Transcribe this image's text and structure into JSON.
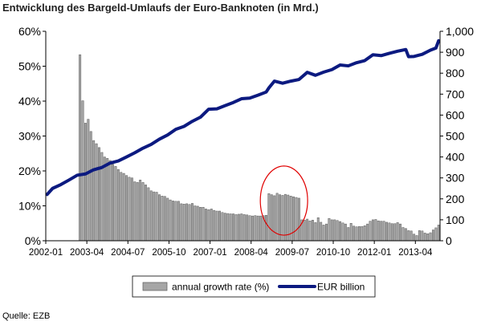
{
  "title": "Entwicklung des Bargeld-Umlaufs der Euro-Banknoten (in Mrd.)",
  "source": "Quelle: EZB",
  "colors": {
    "bar_fill": "#a6a6a6",
    "bar_stroke": "#5a5a5a",
    "line": "#0c1a80",
    "axis": "#000000",
    "highlight_ellipse": "#e00000"
  },
  "chart_data": {
    "type": "bar+line",
    "x_tick_labels": [
      "2002-01",
      "2003-04",
      "2004-07",
      "2005-10",
      "2007-01",
      "2008-04",
      "2009-07",
      "2010-10",
      "2012-01",
      "2013-04"
    ],
    "x_start": "2002-01",
    "x_end": "2013-12",
    "y_left": {
      "ticks": [
        "0%",
        "10%",
        "20%",
        "30%",
        "40%",
        "50%",
        "60%"
      ],
      "min": 0,
      "max": 60,
      "unit": "%"
    },
    "y_right": {
      "ticks": [
        "0",
        "100",
        "200",
        "300",
        "400",
        "500",
        "600",
        "700",
        "800",
        "900",
        "1,000"
      ],
      "min": 0,
      "max": 1000
    },
    "grid": false,
    "legend_position": "bottom",
    "annotation": "red ellipse highlighting 2008-11 to 2009-08",
    "series": [
      {
        "name": "annual growth rate (%)",
        "type": "bar",
        "axis": "left",
        "x": [
          "2003-01",
          "2003-02",
          "2003-03",
          "2003-04",
          "2003-05",
          "2003-06",
          "2003-07",
          "2003-08",
          "2003-09",
          "2003-10",
          "2003-11",
          "2003-12",
          "2004-01",
          "2004-02",
          "2004-03",
          "2004-04",
          "2004-05",
          "2004-06",
          "2004-07",
          "2004-08",
          "2004-09",
          "2004-10",
          "2004-11",
          "2004-12",
          "2005-01",
          "2005-02",
          "2005-03",
          "2005-04",
          "2005-05",
          "2005-06",
          "2005-07",
          "2005-08",
          "2005-09",
          "2005-10",
          "2005-11",
          "2005-12",
          "2006-01",
          "2006-02",
          "2006-03",
          "2006-04",
          "2006-05",
          "2006-06",
          "2006-07",
          "2006-08",
          "2006-09",
          "2006-10",
          "2006-11",
          "2006-12",
          "2007-01",
          "2007-02",
          "2007-03",
          "2007-04",
          "2007-05",
          "2007-06",
          "2007-07",
          "2007-08",
          "2007-09",
          "2007-10",
          "2007-11",
          "2007-12",
          "2008-01",
          "2008-02",
          "2008-03",
          "2008-04",
          "2008-05",
          "2008-06",
          "2008-07",
          "2008-08",
          "2008-09",
          "2008-10",
          "2008-11",
          "2008-12",
          "2009-01",
          "2009-02",
          "2009-03",
          "2009-04",
          "2009-05",
          "2009-06",
          "2009-07",
          "2009-08",
          "2009-09",
          "2009-10",
          "2009-11",
          "2009-12",
          "2010-01",
          "2010-02",
          "2010-03",
          "2010-04",
          "2010-05",
          "2010-06",
          "2010-07",
          "2010-08",
          "2010-09",
          "2010-10",
          "2010-11",
          "2010-12",
          "2011-01",
          "2011-02",
          "2011-03",
          "2011-04",
          "2011-05",
          "2011-06",
          "2011-07",
          "2011-08",
          "2011-09",
          "2011-10",
          "2011-11",
          "2011-12",
          "2012-01",
          "2012-02",
          "2012-03",
          "2012-04",
          "2012-05",
          "2012-06",
          "2012-07",
          "2012-08",
          "2012-09",
          "2012-10",
          "2012-11",
          "2012-12",
          "2013-01",
          "2013-02",
          "2013-03",
          "2013-04",
          "2013-05",
          "2013-06",
          "2013-07",
          "2013-08",
          "2013-09",
          "2013-10",
          "2013-11",
          "2013-12"
        ],
        "values": [
          53.3,
          40.1,
          33.7,
          34.8,
          31.3,
          28.7,
          27.8,
          26.7,
          25.3,
          24.0,
          23.6,
          23.0,
          21.9,
          21.3,
          20.4,
          19.6,
          19.3,
          18.7,
          18.2,
          18.0,
          16.9,
          16.7,
          17.4,
          16.7,
          16.0,
          15.2,
          14.3,
          14.0,
          13.9,
          13.2,
          12.8,
          12.7,
          12.2,
          11.7,
          11.4,
          11.3,
          11.3,
          10.6,
          10.5,
          10.6,
          10.4,
          10.7,
          10.0,
          9.9,
          9.6,
          9.6,
          9.1,
          8.9,
          9.1,
          8.7,
          8.5,
          8.5,
          8.1,
          7.9,
          7.8,
          7.7,
          7.7,
          7.5,
          7.6,
          7.7,
          7.5,
          7.4,
          7.2,
          7.1,
          7.2,
          7.1,
          7.1,
          7.2,
          7.3,
          13.5,
          13.2,
          12.9,
          13.6,
          13.2,
          13.0,
          13.3,
          13.1,
          12.8,
          12.6,
          12.4,
          12.2,
          6.0,
          5.9,
          6.2,
          5.7,
          5.9,
          5.2,
          6.6,
          5.3,
          4.5,
          4.8,
          6.4,
          6.0,
          6.0,
          5.8,
          5.5,
          5.1,
          4.8,
          3.8,
          5.0,
          4.2,
          4.0,
          4.1,
          4.1,
          4.3,
          4.8,
          5.6,
          6.0,
          6.1,
          5.7,
          5.6,
          5.6,
          5.3,
          5.1,
          4.9,
          4.9,
          5.2,
          4.8,
          3.8,
          3.5,
          2.9,
          2.8,
          1.9,
          1.5,
          2.9,
          2.8,
          2.2,
          2.0,
          2.3,
          3.1,
          3.7,
          4.5
        ]
      },
      {
        "name": "EUR billion",
        "type": "line",
        "axis": "right",
        "x": [
          "2002-01",
          "2002-03",
          "2002-06",
          "2002-09",
          "2002-12",
          "2003-03",
          "2003-06",
          "2003-09",
          "2003-12",
          "2004-03",
          "2004-06",
          "2004-09",
          "2004-12",
          "2005-03",
          "2005-06",
          "2005-09",
          "2005-12",
          "2006-03",
          "2006-06",
          "2006-09",
          "2006-12",
          "2007-03",
          "2007-06",
          "2007-09",
          "2007-12",
          "2008-03",
          "2008-06",
          "2008-09",
          "2008-10",
          "2008-12",
          "2009-03",
          "2009-06",
          "2009-09",
          "2009-12",
          "2010-03",
          "2010-06",
          "2010-09",
          "2010-12",
          "2011-03",
          "2011-06",
          "2011-09",
          "2011-12",
          "2012-03",
          "2012-06",
          "2012-09",
          "2012-12",
          "2013-01",
          "2013-03",
          "2013-06",
          "2013-09",
          "2013-11",
          "2013-12"
        ],
        "values": [
          221,
          250,
          268,
          290,
          313,
          319,
          339,
          350,
          371,
          381,
          400,
          420,
          442,
          460,
          485,
          505,
          532,
          546,
          570,
          590,
          628,
          630,
          645,
          660,
          678,
          681,
          695,
          710,
          730,
          762,
          752,
          762,
          770,
          804,
          790,
          805,
          817,
          839,
          835,
          850,
          860,
          888,
          884,
          895,
          905,
          913,
          879,
          880,
          890,
          910,
          920,
          955
        ]
      }
    ]
  },
  "legend": {
    "bar_label": "annual growth rate (%)",
    "line_label": "EUR billion"
  }
}
